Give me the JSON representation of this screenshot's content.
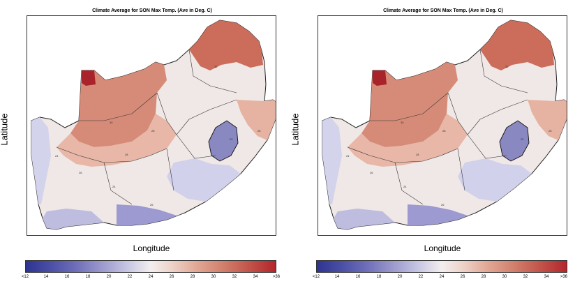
{
  "panels": [
    {
      "title": "Climate Average for SON Max Temp. (Ave in Deg. C)",
      "ylabel": "Latitude",
      "xlabel": "Longitude",
      "colorbar": [
        "<12",
        "14",
        "16",
        "18",
        "20",
        "22",
        "24",
        "26",
        "28",
        "30",
        "32",
        "34",
        ">36"
      ]
    },
    {
      "title": "Climate Average for SON Max Temp. (Ave in Deg. C)",
      "ylabel": "Latitude",
      "xlabel": "Longitude",
      "colorbar": [
        "<12",
        "14",
        "16",
        "18",
        "20",
        "22",
        "24",
        "26",
        "28",
        "30",
        "32",
        "34",
        ">36"
      ]
    }
  ],
  "colors": {
    "cold": "#2d3490",
    "neutral": "#f3eeee",
    "hot": "#b3262b"
  }
}
